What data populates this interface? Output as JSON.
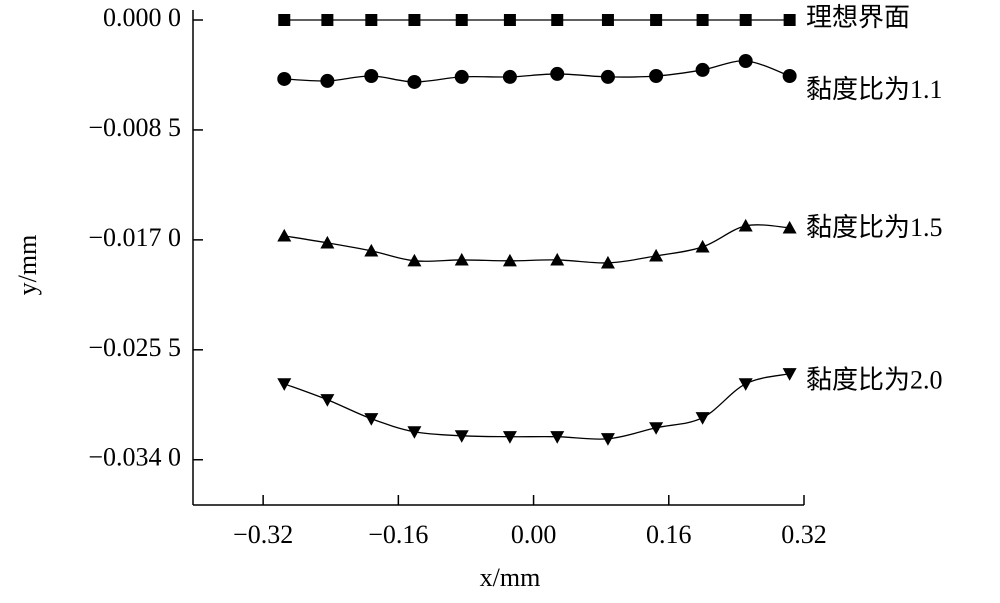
{
  "chart_data": {
    "type": "line",
    "xlabel": "x/mm",
    "ylabel": "y/mm",
    "xlim": [
      -0.403,
      0.32
    ],
    "xticks": [
      {
        "value": -0.32,
        "label": "−0.32"
      },
      {
        "value": -0.16,
        "label": "−0.16"
      },
      {
        "value": 0,
        "label": "0.00"
      },
      {
        "value": 0.16,
        "label": "0.16"
      },
      {
        "value": 0.32,
        "label": "0.32"
      }
    ],
    "ylim": [
      -0.0375,
      0
    ],
    "yticks": [
      {
        "value": 0,
        "label": "0.000 0"
      },
      {
        "value": -0.0085,
        "label": "−0.008 5"
      },
      {
        "value": -0.017,
        "label": "−0.017 0"
      },
      {
        "value": -0.0255,
        "label": "−0.025 5"
      },
      {
        "value": -0.034,
        "label": "−0.034 0"
      }
    ],
    "x": [
      -0.295,
      -0.244,
      -0.192,
      -0.141,
      -0.085,
      -0.028,
      0.028,
      0.088,
      0.145,
      0.2,
      0.251,
      0.303
    ],
    "series": [
      {
        "name": "理想界面",
        "color": "#000000",
        "marker": "square",
        "values": [
          0,
          0,
          0,
          0,
          0,
          0,
          0,
          0,
          0,
          0,
          0,
          0
        ]
      },
      {
        "name": "黏度比为1.1",
        "color": "#000000",
        "marker": "circle",
        "values": [
          -0.00456,
          -0.00471,
          -0.00433,
          -0.00479,
          -0.0044,
          -0.0044,
          -0.00417,
          -0.0044,
          -0.00433,
          -0.00386,
          -0.00317,
          -0.00433
        ]
      },
      {
        "name": "黏度比为1.5",
        "color": "#000000",
        "marker": "triangle-up",
        "values": [
          -0.01669,
          -0.01723,
          -0.01785,
          -0.01862,
          -0.01855,
          -0.01862,
          -0.01855,
          -0.01878,
          -0.01824,
          -0.01754,
          -0.01592,
          -0.01607
        ]
      },
      {
        "name": "黏度比为2.0",
        "color": "#000000",
        "marker": "triangle-down",
        "values": [
          -0.02813,
          -0.02936,
          -0.03083,
          -0.03184,
          -0.03215,
          -0.03222,
          -0.03222,
          -0.03238,
          -0.03153,
          -0.03075,
          -0.02813,
          -0.02735
        ]
      }
    ]
  }
}
